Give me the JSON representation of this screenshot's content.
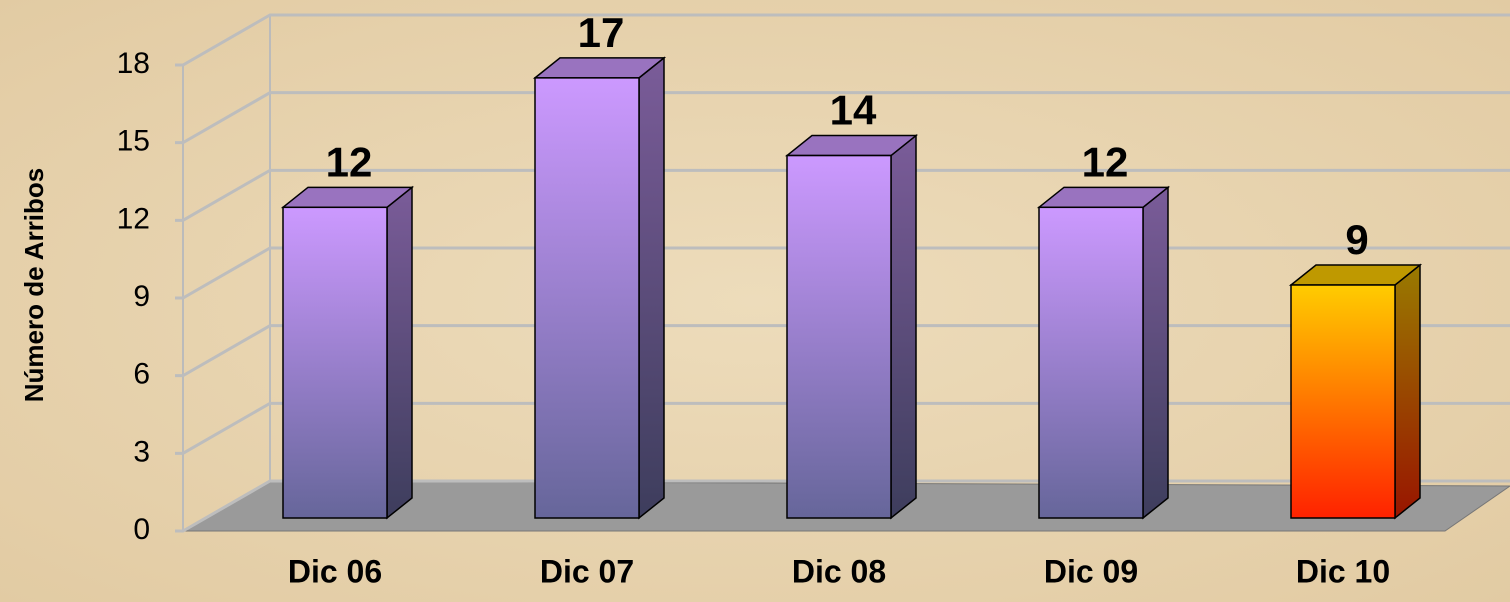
{
  "chart_data": {
    "type": "bar3d",
    "y_label": "Número de Arribos",
    "categories": [
      "Dic 06",
      "Dic 07",
      "Dic 08",
      "Dic 09",
      "Dic 10"
    ],
    "values": [
      12,
      17,
      14,
      12,
      9
    ],
    "colors": [
      "#cc99ff",
      "#cc99ff",
      "#cc99ff",
      "#cc99ff",
      "#ffcc00"
    ],
    "bottom_colors": [
      "#66669a",
      "#66669a",
      "#66669a",
      "#66669a",
      "#ff2200"
    ],
    "ylim": [
      0,
      18
    ],
    "yticks": [
      0,
      3,
      6,
      9,
      12,
      15,
      18
    ],
    "grid": true
  }
}
